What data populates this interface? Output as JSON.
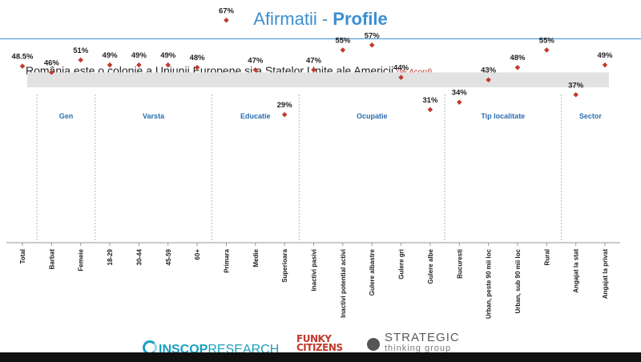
{
  "header": {
    "title_part1": "Afirmatii - ",
    "title_part2": "Profile"
  },
  "subtitle": {
    "text": "România este o colonie a Uniunii Europene și a Statelor Unite ale Americii",
    "unit": "(%   Acord)"
  },
  "chart_data": {
    "type": "scatter",
    "title": "România este o colonie a Uniunii Europene și a Statelor Unite ale Americii",
    "unit_note": "(%   Acord)",
    "categories": [
      "Total",
      "Barbat",
      "Femeie",
      "18-29",
      "30-44",
      "45-59",
      "60+",
      "Primara",
      "Medie",
      "Superioara",
      "Inactivi pasivi",
      "Inactivi potential activi",
      "Gulere albastre",
      "Gulere gri",
      "Gulere albe",
      "Bucuresti",
      "Urban, peste 90 mii loc",
      "Urban, sub 90 mii loc",
      "Rural",
      "Angajat la stat",
      "Angajat la privat"
    ],
    "values": [
      48.5,
      46,
      51,
      49,
      49,
      49,
      48,
      67,
      47,
      29,
      47,
      55,
      57,
      44,
      31,
      34,
      43,
      48,
      55,
      37,
      49
    ],
    "value_labels": [
      "48.5%",
      "46%",
      "51%",
      "49%",
      "49%",
      "49%",
      "48%",
      "67%",
      "47%",
      "29%",
      "47%",
      "55%",
      "57%",
      "44%",
      "31%",
      "34%",
      "43%",
      "48%",
      "55%",
      "37%",
      "49%"
    ],
    "groups": [
      {
        "label": "Gen",
        "start": 1,
        "end": 2
      },
      {
        "label": "Varsta",
        "start": 3,
        "end": 6
      },
      {
        "label": "Educatie",
        "start": 7,
        "end": 9
      },
      {
        "label": "Ocupatie",
        "start": 10,
        "end": 14
      },
      {
        "label": "Tip localitate",
        "start": 15,
        "end": 18
      },
      {
        "label": "Sector",
        "start": 19,
        "end": 20
      }
    ],
    "reference_band": [
      40,
      46
    ],
    "ylim": [
      0,
      80
    ],
    "grid": false,
    "marker_color": "#c0392b",
    "group_label_color": "#2a6fb0"
  },
  "footer": {
    "logo1_a": "INSCOP",
    "logo1_b": "RESEARCH",
    "logo2_line1": "FUNKY",
    "logo2_line2": "CITIZENS",
    "logo3_line1": "STRATEGIC",
    "logo3_line2": "thinking group"
  }
}
